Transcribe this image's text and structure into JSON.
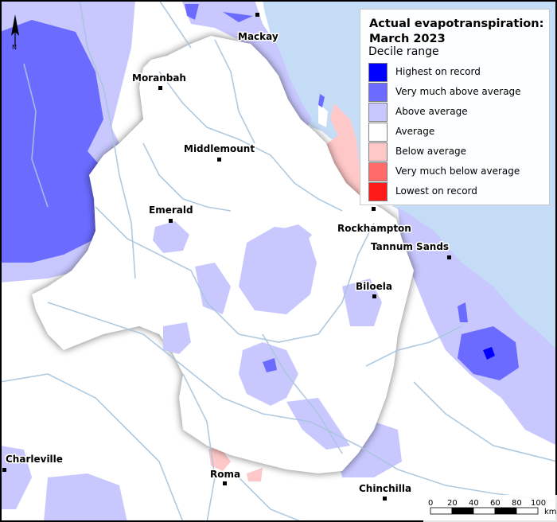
{
  "title_line1": "Actual evapotranspiration:",
  "title_line2": "March 2023",
  "legend_subtitle": "Decile range",
  "legend": [
    {
      "label": "Highest on record",
      "color": "#0000ff"
    },
    {
      "label": "Very much above average",
      "color": "#6b6bff"
    },
    {
      "label": "Above average",
      "color": "#c8c8ff"
    },
    {
      "label": "Average",
      "color": "#ffffff"
    },
    {
      "label": "Below average",
      "color": "#ffc8c8"
    },
    {
      "label": "Very much below average",
      "color": "#ff6b6b"
    },
    {
      "label": "Lowest on record",
      "color": "#ff1a1a"
    }
  ],
  "places": {
    "mackay": "Mackay",
    "moranbah": "Moranbah",
    "middlemount": "Middlemount",
    "emerald": "Emerald",
    "rockhampton": "Rockhampton",
    "tannum_sands": "Tannum Sands",
    "biloela": "Biloela",
    "charleville": "Charleville",
    "roma": "Roma",
    "chinchilla": "Chinchilla"
  },
  "north_arrow": "N",
  "scale_bar": {
    "ticks": [
      "0",
      "20",
      "40",
      "60",
      "80",
      "100"
    ],
    "unit": "km"
  },
  "colors": {
    "sea": "#c4dcf5",
    "rivers": "#a8c4dc"
  }
}
